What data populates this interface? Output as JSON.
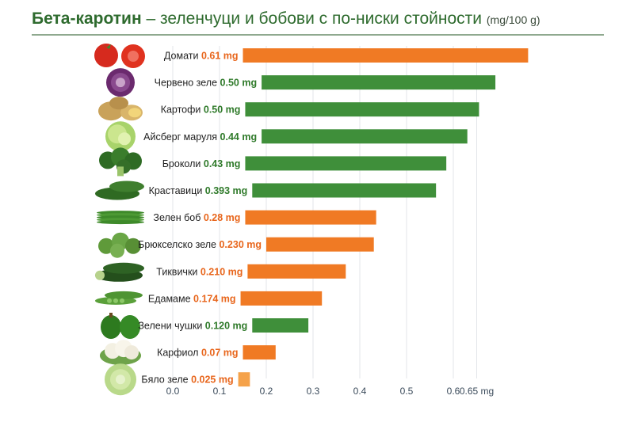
{
  "title": {
    "main": "Бета-каротин",
    "dash": " – ",
    "rest": "зеленчуци и бобови с по-ниски стойности",
    "unit": "(mg/100 g)"
  },
  "colors": {
    "green": "#3f8f3a",
    "orange": "#f07a24",
    "light_orange": "#f5a24a",
    "value_green": "#2f7a2a",
    "value_orange": "#e8661c"
  },
  "chart_data": {
    "type": "bar",
    "orientation": "horizontal",
    "title": "Бета-каротин – зеленчуци и бобови с по-ниски стойности (mg/100 g)",
    "xlim": [
      0,
      0.7
    ],
    "x_ticks": [
      "0.0",
      "0.1",
      "0.2",
      "0.3",
      "0.4",
      "0.5",
      "0.6",
      "0.65 mg"
    ],
    "grid": true,
    "items": [
      {
        "name": "Домати",
        "value": 0.61,
        "value_label": "0.61 mg",
        "color": "orange",
        "icon": "tomato-icon"
      },
      {
        "name": "Червено зеле",
        "value": 0.5,
        "value_label": "0.50 mg",
        "color": "green",
        "icon": "red-cabbage-icon"
      },
      {
        "name": "Картофи",
        "value": 0.5,
        "value_label": "0.50 mg",
        "color": "green",
        "icon": "potato-icon"
      },
      {
        "name": "Айсберг маруля",
        "value": 0.44,
        "value_label": "0.44 mg",
        "color": "green",
        "icon": "lettuce-icon"
      },
      {
        "name": "Броколи",
        "value": 0.43,
        "value_label": "0.43 mg",
        "color": "green",
        "icon": "broccoli-icon"
      },
      {
        "name": "Краставици",
        "value": 0.393,
        "value_label": "0.393 mg",
        "color": "green",
        "icon": "cucumber-icon"
      },
      {
        "name": "Зелен боб",
        "value": 0.28,
        "value_label": "0.28 mg",
        "color": "orange",
        "icon": "green-beans-icon"
      },
      {
        "name": "Брюкселско зеле",
        "value": 0.23,
        "value_label": "0.230 mg",
        "color": "orange",
        "icon": "brussels-sprouts-icon"
      },
      {
        "name": "Тиквички",
        "value": 0.21,
        "value_label": "0.210 mg",
        "color": "orange",
        "icon": "zucchini-icon"
      },
      {
        "name": "Едамаме",
        "value": 0.174,
        "value_label": "0.174 mg",
        "color": "orange",
        "icon": "edamame-icon"
      },
      {
        "name": "Зелени чушки",
        "value": 0.12,
        "value_label": "0.120 mg",
        "color": "green",
        "icon": "green-pepper-icon"
      },
      {
        "name": "Карфиол",
        "value": 0.07,
        "value_label": "0.07 mg",
        "color": "orange",
        "icon": "cauliflower-icon"
      },
      {
        "name": "Бяло зеле",
        "value": 0.025,
        "value_label": "0.025 mg",
        "color": "light_orange",
        "icon": "white-cabbage-icon"
      }
    ]
  }
}
